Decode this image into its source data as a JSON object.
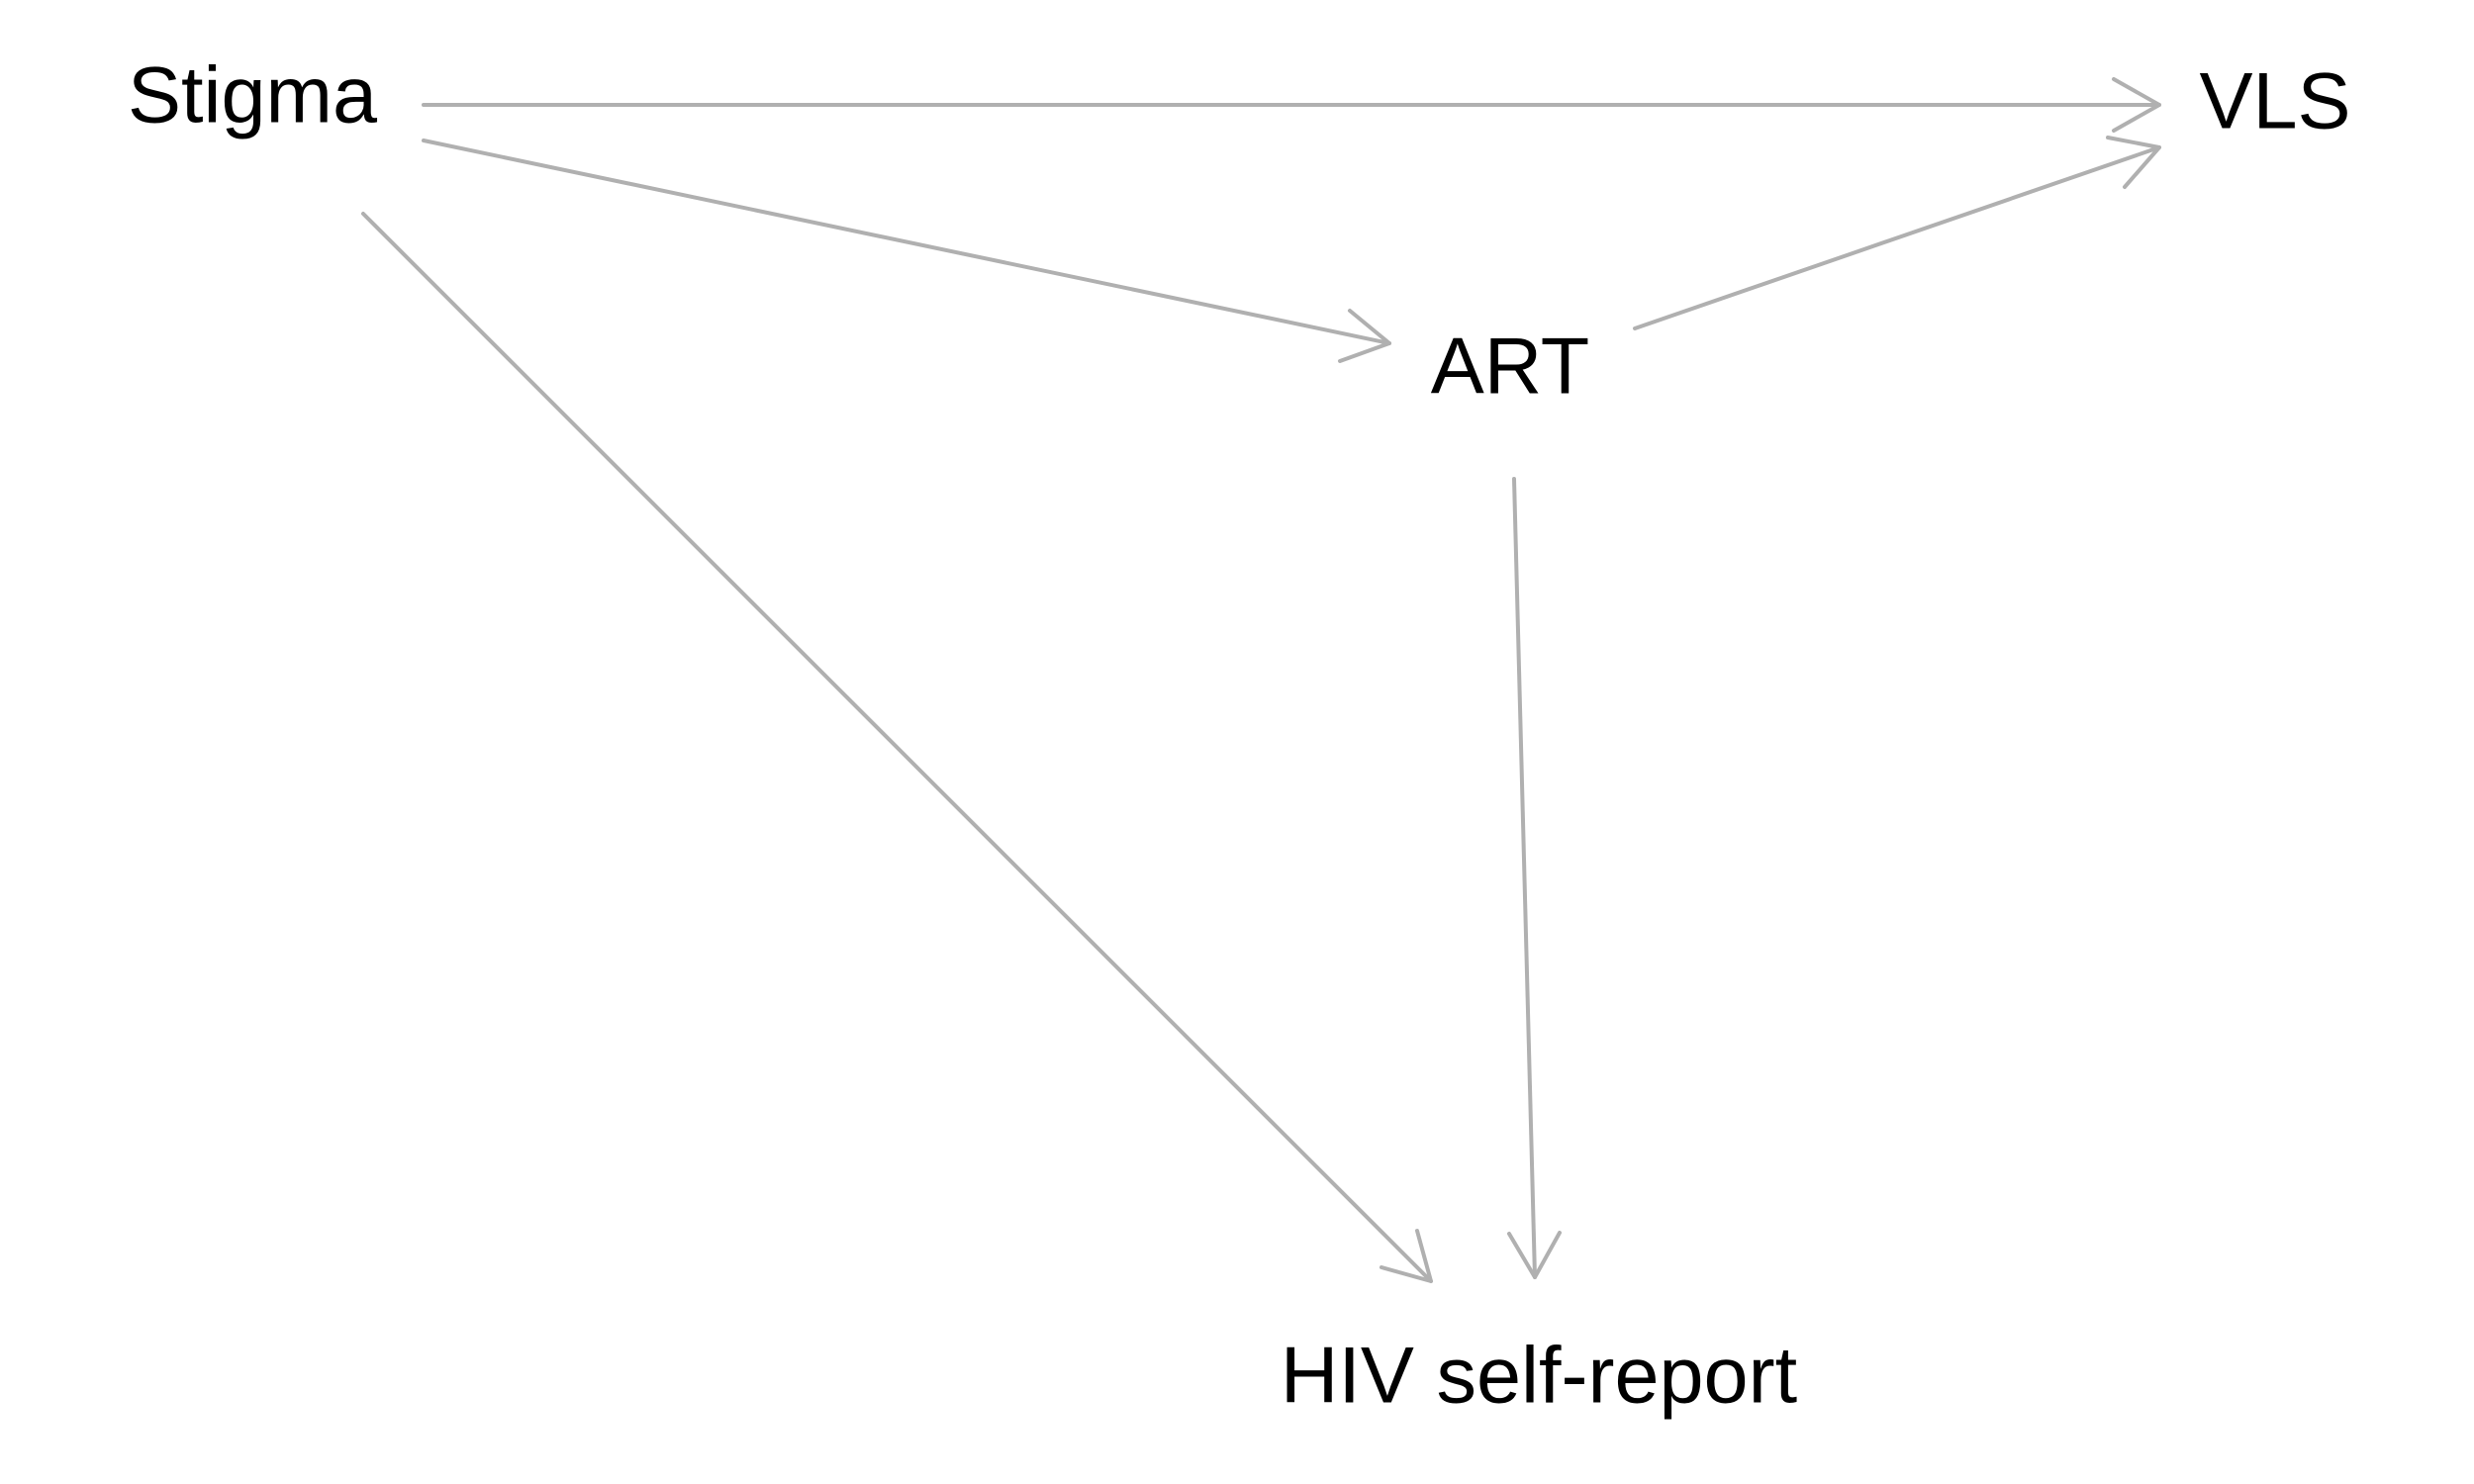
{
  "colors": {
    "background": "#ffffff",
    "edge": "#b0b0b0",
    "text": "#000000"
  },
  "nodes": {
    "stigma": "Stigma",
    "vls": "VLS",
    "art": "ART",
    "hiv_self_report": "HIV self-report"
  },
  "edges": [
    {
      "from": "Stigma",
      "to": "VLS"
    },
    {
      "from": "Stigma",
      "to": "ART"
    },
    {
      "from": "Stigma",
      "to": "HIV self-report"
    },
    {
      "from": "ART",
      "to": "VLS"
    },
    {
      "from": "ART",
      "to": "HIV self-report"
    }
  ]
}
